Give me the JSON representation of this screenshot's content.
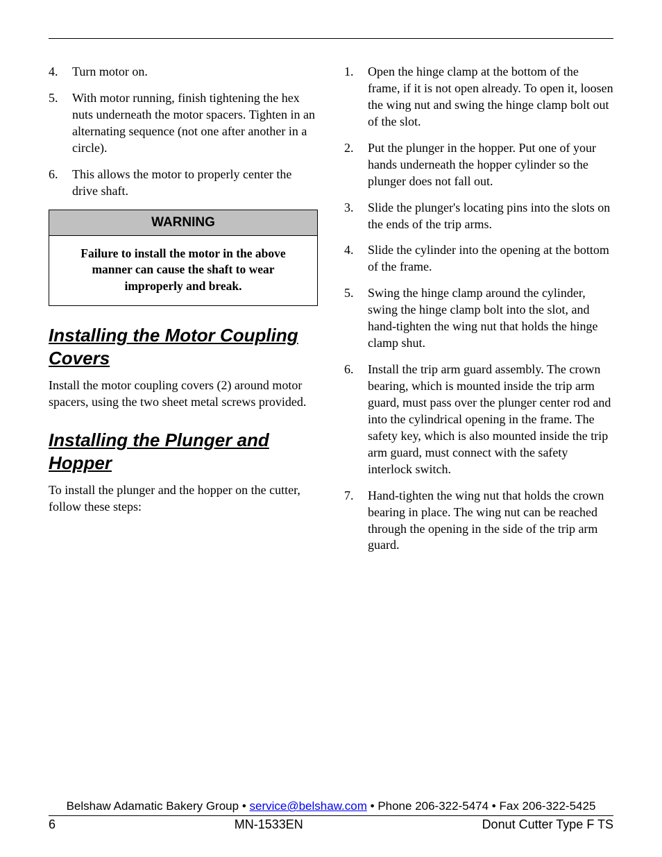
{
  "left": {
    "steps": [
      {
        "n": "4.",
        "t": "Turn motor on."
      },
      {
        "n": "5.",
        "t": "With motor running, finish tightening the hex nuts underneath the motor spacers.  Tighten in an alternating sequence (not one after another in a circle)."
      },
      {
        "n": "6.",
        "t": "This allows the motor to properly center the drive shaft."
      }
    ],
    "warning_label": "WARNING",
    "warning_text": "Failure to install the motor in the above manner can cause the shaft to wear improperly and break.",
    "heading1": "Installing the Motor Coupling Covers",
    "para1": "Install the motor coupling covers (2) around motor spacers, using the two sheet metal screws provided.",
    "heading2": "Installing the Plunger and Hopper",
    "para2": "To install the plunger and the hopper on the cutter, follow these steps:"
  },
  "right": {
    "steps": [
      {
        "n": "1.",
        "t": "Open the hinge clamp at the bottom of the frame, if it is not open already.  To open it, loosen the wing nut and swing the hinge clamp bolt out of the slot."
      },
      {
        "n": "2.",
        "t": "Put the plunger in the hopper.  Put one of your hands underneath the hopper cylinder so the plunger does not fall out."
      },
      {
        "n": "3.",
        "t": "Slide the plunger's locating pins into the slots on the ends of the trip arms."
      },
      {
        "n": "4.",
        "t": "Slide the cylinder into the opening at the bottom of the frame."
      },
      {
        "n": "5.",
        "t": "Swing the hinge clamp around the cylinder, swing the hinge clamp bolt into the slot, and hand-tighten the wing nut that holds the hinge clamp shut."
      },
      {
        "n": "6.",
        "t": "Install the trip arm guard assembly.  The crown bearing, which is mounted inside the trip arm guard, must pass over the plunger center rod and into the cylindrical opening in the frame.  The safety key, which is also mounted inside the trip arm guard, must connect with the safety interlock switch."
      },
      {
        "n": "7.",
        "t": "Hand-tighten the wing nut that holds the crown bearing in place.  The wing nut can be reached through the opening in the side of the trip arm guard."
      }
    ]
  },
  "footer": {
    "company": "Belshaw Adamatic Bakery Group",
    "email": "service@belshaw.com",
    "phone": "Phone 206-322-5474",
    "fax": "Fax 206-322-5425",
    "page_num": "6",
    "doc_id": "MN-1533EN",
    "doc_title": "Donut Cutter Type F TS"
  }
}
